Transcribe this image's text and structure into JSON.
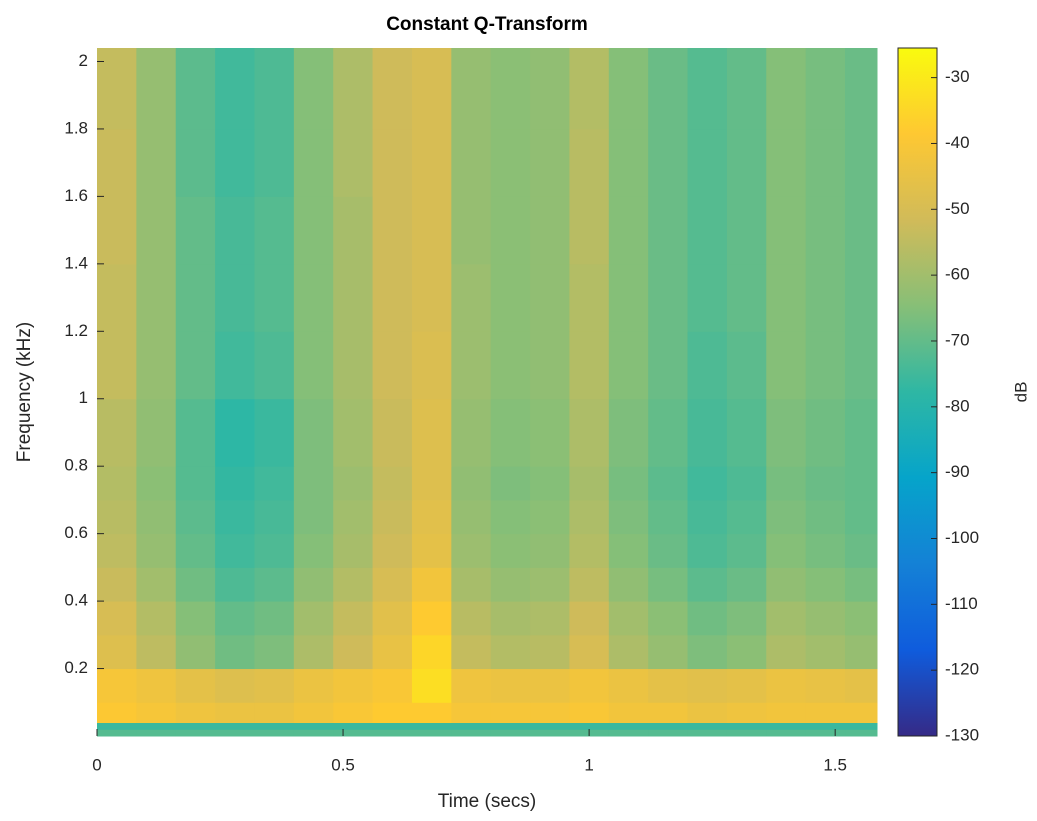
{
  "chart_data": {
    "type": "heatmap",
    "title": "Constant Q-Transform",
    "xlabel": "Time (secs)",
    "ylabel": "Frequency (kHz)",
    "colorbar_label": "dB",
    "xlim": [
      0,
      1.585
    ],
    "xticks": [
      0,
      0.5,
      1,
      1.5
    ],
    "ylim": [
      0,
      2.04
    ],
    "yticks": [
      0.2,
      0.4,
      0.6,
      0.8,
      1,
      1.2,
      1.4,
      1.6,
      1.8,
      2
    ],
    "clim": [
      -130,
      -25.5
    ],
    "cticks": [
      -130,
      -120,
      -110,
      -100,
      -90,
      -80,
      -70,
      -60,
      -50,
      -40,
      -30
    ],
    "colormap": [
      "#352a87",
      "#0f5cdd",
      "#1481d6",
      "#06a4ca",
      "#2eb7a4",
      "#87bf77",
      "#d1bb59",
      "#fec832",
      "#f9fb0e"
    ],
    "xbins": [
      0,
      0.08,
      0.16,
      0.24,
      0.32,
      0.4,
      0.48,
      0.56,
      0.64,
      0.72,
      0.8,
      0.88,
      0.96,
      1.04,
      1.12,
      1.2,
      1.28,
      1.36,
      1.44,
      1.52,
      1.585
    ],
    "ybins": [
      0,
      0.02,
      0.04,
      0.1,
      0.2,
      0.3,
      0.4,
      0.5,
      0.6,
      0.7,
      0.8,
      1.0,
      1.2,
      1.4,
      1.6,
      1.8,
      2.04
    ],
    "values": [
      [
        -72,
        -72,
        -72,
        -72,
        -72,
        -72,
        -72,
        -72,
        -72,
        -72,
        -72,
        -72,
        -72,
        -72,
        -72,
        -72,
        -72,
        -72,
        -72,
        -72
      ],
      [
        -76,
        -76,
        -76,
        -76,
        -76,
        -76,
        -76,
        -76,
        -76,
        -76,
        -76,
        -76,
        -76,
        -76,
        -76,
        -76,
        -76,
        -76,
        -76,
        -76
      ],
      [
        -39,
        -41,
        -43,
        -44,
        -44,
        -42,
        -40,
        -38,
        -38,
        -41,
        -41,
        -41,
        -40,
        -42,
        -42,
        -44,
        -43,
        -42,
        -42,
        -42
      ],
      [
        -41,
        -43,
        -46,
        -48,
        -47,
        -44,
        -42,
        -40,
        -33,
        -43,
        -44,
        -44,
        -42,
        -44,
        -46,
        -47,
        -46,
        -44,
        -45,
        -46
      ],
      [
        -48,
        -55,
        -63,
        -68,
        -66,
        -58,
        -52,
        -45,
        -35,
        -54,
        -57,
        -56,
        -50,
        -58,
        -62,
        -66,
        -64,
        -58,
        -60,
        -62
      ],
      [
        -50,
        -57,
        -65,
        -70,
        -68,
        -60,
        -54,
        -47,
        -38,
        -56,
        -59,
        -58,
        -52,
        -60,
        -64,
        -68,
        -66,
        -60,
        -62,
        -64
      ],
      [
        -53,
        -60,
        -68,
        -73,
        -71,
        -63,
        -57,
        -50,
        -42,
        -59,
        -62,
        -61,
        -55,
        -63,
        -67,
        -71,
        -69,
        -63,
        -65,
        -67
      ],
      [
        -55,
        -62,
        -70,
        -75,
        -73,
        -65,
        -59,
        -52,
        -46,
        -61,
        -64,
        -63,
        -57,
        -65,
        -69,
        -73,
        -71,
        -65,
        -67,
        -69
      ],
      [
        -56,
        -63,
        -71,
        -76,
        -74,
        -66,
        -60,
        -53,
        -47,
        -62,
        -65,
        -64,
        -58,
        -66,
        -70,
        -74,
        -72,
        -66,
        -68,
        -70
      ],
      [
        -57,
        -64,
        -72,
        -77,
        -75,
        -66,
        -61,
        -54,
        -48,
        -63,
        -66,
        -65,
        -59,
        -67,
        -71,
        -75,
        -73,
        -67,
        -69,
        -70
      ],
      [
        -56,
        -63,
        -72,
        -78,
        -76,
        -66,
        -60,
        -53,
        -48,
        -62,
        -65,
        -64,
        -58,
        -66,
        -70,
        -74,
        -72,
        -66,
        -68,
        -70
      ],
      [
        -54,
        -62,
        -70,
        -75,
        -73,
        -65,
        -59,
        -52,
        -49,
        -61,
        -64,
        -63,
        -57,
        -65,
        -69,
        -73,
        -71,
        -65,
        -67,
        -69
      ],
      [
        -54,
        -62,
        -70,
        -74,
        -72,
        -65,
        -59,
        -52,
        -50,
        -61,
        -64,
        -63,
        -57,
        -65,
        -69,
        -72,
        -70,
        -65,
        -67,
        -69
      ],
      [
        -53,
        -62,
        -70,
        -74,
        -72,
        -65,
        -59,
        -52,
        -50,
        -62,
        -64,
        -63,
        -56,
        -65,
        -69,
        -72,
        -70,
        -65,
        -67,
        -69
      ],
      [
        -53,
        -62,
        -71,
        -75,
        -73,
        -65,
        -58,
        -52,
        -50,
        -62,
        -64,
        -63,
        -56,
        -65,
        -69,
        -72,
        -70,
        -65,
        -67,
        -69
      ],
      [
        -54,
        -62,
        -71,
        -75,
        -73,
        -65,
        -58,
        -52,
        -50,
        -62,
        -64,
        -63,
        -57,
        -65,
        -69,
        -72,
        -70,
        -65,
        -67,
        -69
      ]
    ]
  }
}
